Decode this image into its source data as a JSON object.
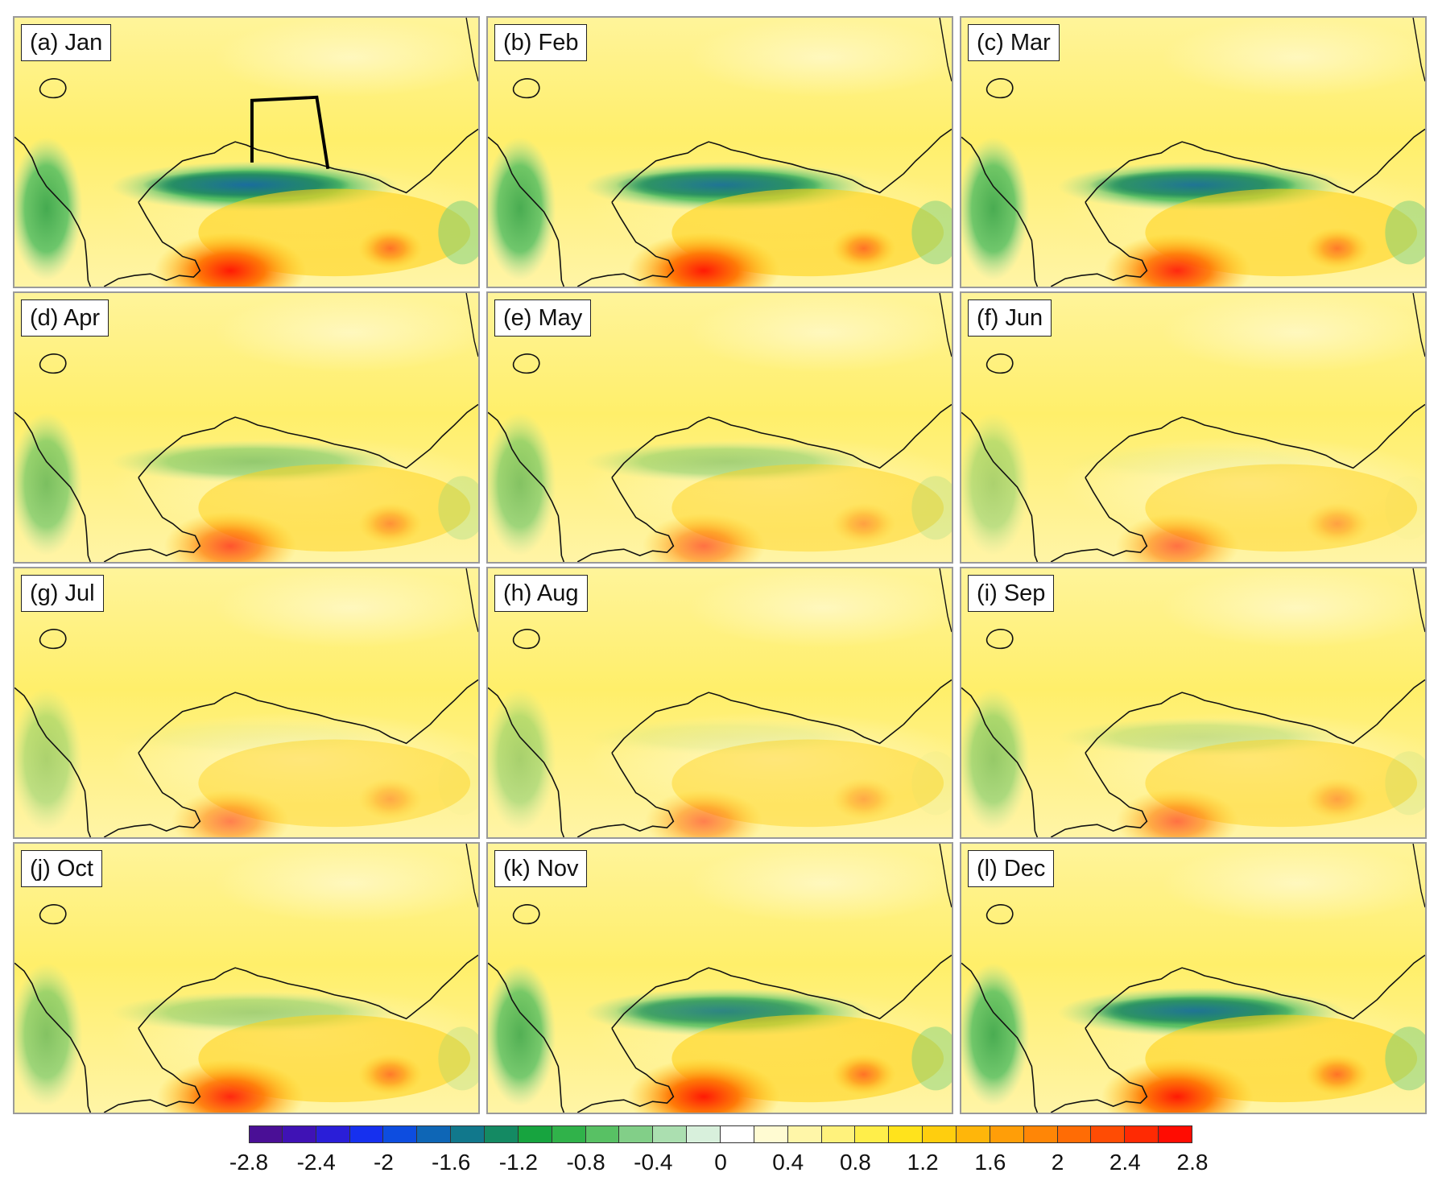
{
  "panels": [
    {
      "label": "(a) Jan",
      "month": "Jan",
      "coastal_green": 2.4,
      "southern_red": 3.0,
      "show_region_box": true
    },
    {
      "label": "(b) Feb",
      "month": "Feb",
      "coastal_green": 2.3,
      "southern_red": 3.0,
      "show_region_box": false
    },
    {
      "label": "(c) Mar",
      "month": "Mar",
      "coastal_green": 2.3,
      "southern_red": 2.8,
      "show_region_box": false
    },
    {
      "label": "(d) Apr",
      "month": "Apr",
      "coastal_green": 1.2,
      "southern_red": 2.2,
      "show_region_box": false
    },
    {
      "label": "(e) May",
      "month": "May",
      "coastal_green": 1.0,
      "southern_red": 1.8,
      "show_region_box": false
    },
    {
      "label": "(f) Jun",
      "month": "Jun",
      "coastal_green": 0.1,
      "southern_red": 1.8,
      "show_region_box": false
    },
    {
      "label": "(g) Jul",
      "month": "Jul",
      "coastal_green": 0.1,
      "southern_red": 1.6,
      "show_region_box": false
    },
    {
      "label": "(h) Aug",
      "month": "Aug",
      "coastal_green": 0.2,
      "southern_red": 1.6,
      "show_region_box": false
    },
    {
      "label": "(i) Sep",
      "month": "Sep",
      "coastal_green": 0.6,
      "southern_red": 1.8,
      "show_region_box": false
    },
    {
      "label": "(j) Oct",
      "month": "Oct",
      "coastal_green": 1.0,
      "southern_red": 2.8,
      "show_region_box": false
    },
    {
      "label": "(k) Nov",
      "month": "Nov",
      "coastal_green": 2.1,
      "southern_red": 3.0,
      "show_region_box": false
    },
    {
      "label": "(l) Dec",
      "month": "Dec",
      "coastal_green": 2.3,
      "southern_red": 3.0,
      "show_region_box": false
    }
  ],
  "colorbar": {
    "colors": [
      "#4a0f96",
      "#3f12b5",
      "#2a1ed8",
      "#1630ef",
      "#0d4de0",
      "#0e66b6",
      "#11788c",
      "#148a63",
      "#17a43f",
      "#30b24a",
      "#58c164",
      "#82cf88",
      "#abdfb0",
      "#d8f0dc",
      "#ffffff",
      "#fffbd2",
      "#fff6a8",
      "#fff27c",
      "#ffee4a",
      "#ffe31c",
      "#ffce0e",
      "#ffb60a",
      "#ff9e08",
      "#ff8606",
      "#ff6c05",
      "#ff4c04",
      "#ff2a03",
      "#ff0c02"
    ],
    "ticks": [
      "-2.8",
      "-2.4",
      "-2",
      "-1.6",
      "-1.2",
      "-0.8",
      "-0.4",
      "0",
      "0.4",
      "0.8",
      "1.2",
      "1.6",
      "2",
      "2.4",
      "2.8"
    ]
  }
}
